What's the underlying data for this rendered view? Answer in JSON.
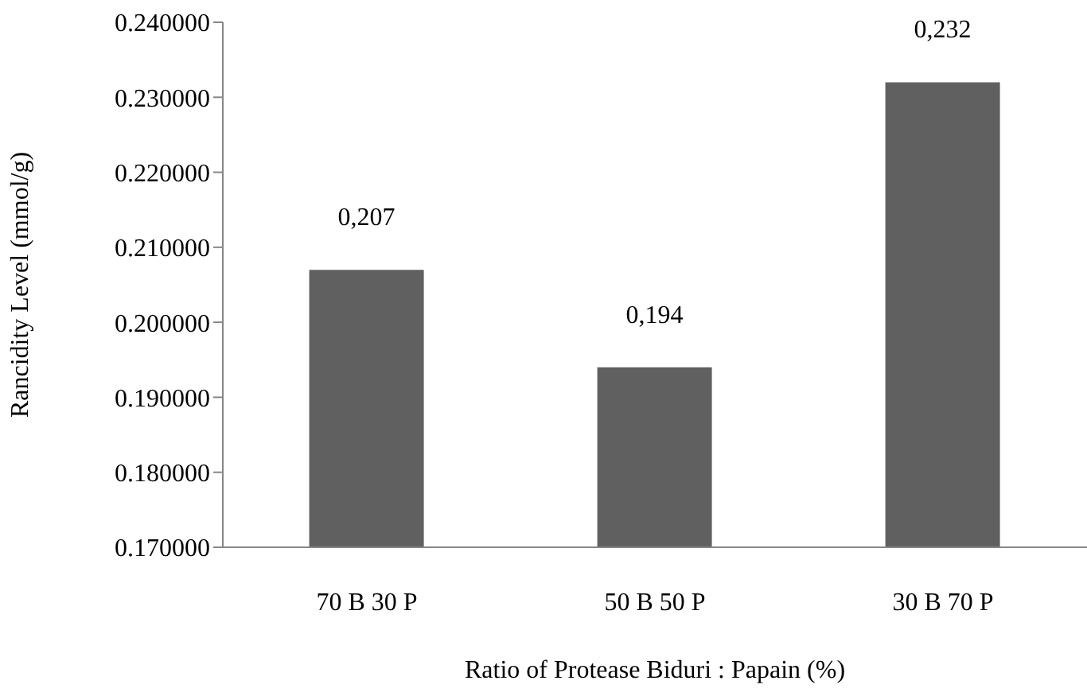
{
  "chart_data": {
    "type": "bar",
    "xlabel": "Ratio of Protease Biduri : Papain (%)",
    "ylabel": "Rancidity Level (mmol/g)",
    "categories": [
      "70 B 30 P",
      "50 B 50 P",
      "30 B 70 P"
    ],
    "values": [
      0.207,
      0.194,
      0.232
    ],
    "value_labels": [
      "0,207",
      "0,194",
      "0,232"
    ],
    "color": "#606060",
    "ylim": [
      0.17,
      0.24
    ],
    "yticks": [
      {
        "value": 0.17,
        "label": "0.170000"
      },
      {
        "value": 0.18,
        "label": "0.180000"
      },
      {
        "value": 0.19,
        "label": "0.190000"
      },
      {
        "value": 0.2,
        "label": "0.200000"
      },
      {
        "value": 0.21,
        "label": "0.210000"
      },
      {
        "value": 0.22,
        "label": "0.220000"
      },
      {
        "value": 0.23,
        "label": "0.230000"
      },
      {
        "value": 0.24,
        "label": "0.240000"
      }
    ],
    "grid": false
  }
}
